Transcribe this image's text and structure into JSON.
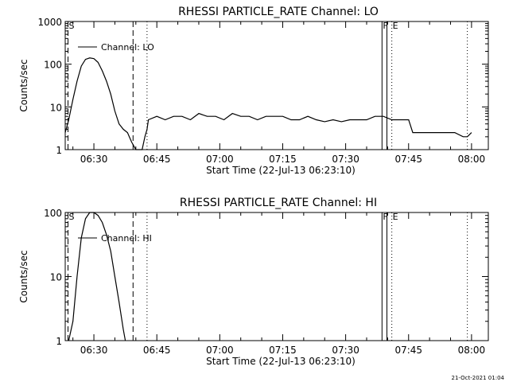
{
  "footer": {
    "timestamp": "21-Oct-2021 01:04"
  },
  "chart_data": [
    {
      "type": "line",
      "title": "RHESSI PARTICLE_RATE Channel: LO",
      "xlabel": "Start Time (22-Jul-13 06:23:10)",
      "ylabel": "Counts/sec",
      "yscale": "log",
      "ylim": [
        1,
        1000
      ],
      "xlim": [
        "06:23:10",
        "08:04:00"
      ],
      "x_ticks": [
        "06:30",
        "06:45",
        "07:00",
        "07:15",
        "07:30",
        "07:45",
        "08:00"
      ],
      "y_ticks": [
        "1",
        "10",
        "100",
        "1000"
      ],
      "legend": {
        "label": "Channel: LO",
        "placement": "top-left"
      },
      "markers": [
        {
          "label": "S",
          "time": "06:23:50",
          "style": "dashed"
        },
        {
          "label": "",
          "time": "06:39:20",
          "style": "dashed"
        },
        {
          "label": "",
          "time": "06:42:40",
          "style": "dotted"
        },
        {
          "label": "F",
          "time": "07:38:40",
          "style": "solid"
        },
        {
          "label": "",
          "time": "07:39:50",
          "style": "solid"
        },
        {
          "label": "E",
          "time": "07:41:00",
          "style": "dotted"
        },
        {
          "label": "",
          "time": "07:59:00",
          "style": "dotted"
        }
      ],
      "series": [
        {
          "name": "Channel: LO",
          "x": [
            "06:23:10",
            "06:24:00",
            "06:25:00",
            "06:26:00",
            "06:27:00",
            "06:28:00",
            "06:29:00",
            "06:30:00",
            "06:31:00",
            "06:32:00",
            "06:33:00",
            "06:34:00",
            "06:35:00",
            "06:36:00",
            "06:37:00",
            "06:38:00",
            "06:39:00",
            "06:40:00",
            "06:40:40",
            "06:41:30",
            "06:42:10",
            "06:42:40",
            "06:43:00",
            "06:45:00",
            "06:47:00",
            "06:49:00",
            "06:51:00",
            "06:53:00",
            "06:55:00",
            "06:57:00",
            "06:59:00",
            "07:01:00",
            "07:03:00",
            "07:05:00",
            "07:07:00",
            "07:09:00",
            "07:11:00",
            "07:13:00",
            "07:15:00",
            "07:17:00",
            "07:19:00",
            "07:21:00",
            "07:23:00",
            "07:25:00",
            "07:27:00",
            "07:29:00",
            "07:31:00",
            "07:33:00",
            "07:35:00",
            "07:37:00",
            "07:39:00",
            "07:41:00",
            "07:43:00",
            "07:44:00",
            "07:45:00",
            "07:46:00",
            "07:48:00",
            "07:50:00",
            "07:52:00",
            "07:54:00",
            "07:56:00",
            "07:58:00",
            "07:59:00",
            "08:00:00"
          ],
          "y": [
            2.5,
            5,
            15,
            40,
            90,
            130,
            140,
            135,
            110,
            70,
            40,
            20,
            8,
            4,
            3,
            2.5,
            1.5,
            1,
            1,
            1,
            2,
            3,
            5,
            6,
            5,
            6,
            6,
            5,
            7,
            6,
            6,
            5,
            7,
            6,
            6,
            5,
            6,
            6,
            6,
            5,
            5,
            6,
            5,
            4.5,
            5,
            4.5,
            5,
            5,
            5,
            6,
            6,
            5,
            5,
            5,
            5,
            2.5,
            2.5,
            2.5,
            2.5,
            2.5,
            2.5,
            2,
            2,
            2.5
          ]
        }
      ]
    },
    {
      "type": "line",
      "title": "RHESSI PARTICLE_RATE Channel: HI",
      "xlabel": "Start Time (22-Jul-13 06:23:10)",
      "ylabel": "Counts/sec",
      "yscale": "log",
      "ylim": [
        1,
        100
      ],
      "xlim": [
        "06:23:10",
        "08:04:00"
      ],
      "x_ticks": [
        "06:30",
        "06:45",
        "07:00",
        "07:15",
        "07:30",
        "07:45",
        "08:00"
      ],
      "y_ticks": [
        "1",
        "10",
        "100"
      ],
      "legend": {
        "label": "Channel: HI",
        "placement": "top-left"
      },
      "markers": [
        {
          "label": "S",
          "time": "06:23:50",
          "style": "dashed"
        },
        {
          "label": "",
          "time": "06:39:20",
          "style": "dashed"
        },
        {
          "label": "",
          "time": "06:42:40",
          "style": "dotted"
        },
        {
          "label": "F",
          "time": "07:38:40",
          "style": "solid"
        },
        {
          "label": "",
          "time": "07:39:50",
          "style": "solid"
        },
        {
          "label": "E",
          "time": "07:41:00",
          "style": "dotted"
        },
        {
          "label": "",
          "time": "07:59:00",
          "style": "dotted"
        }
      ],
      "series": [
        {
          "name": "Channel: HI",
          "x": [
            "06:24:00",
            "06:25:00",
            "06:26:00",
            "06:27:00",
            "06:28:00",
            "06:29:00",
            "06:30:00",
            "06:31:00",
            "06:32:00",
            "06:33:00",
            "06:34:00",
            "06:35:00",
            "06:36:00",
            "06:37:00",
            "06:37:30"
          ],
          "y": [
            1,
            2,
            10,
            40,
            80,
            100,
            100,
            90,
            70,
            45,
            25,
            10,
            4,
            1.5,
            1
          ]
        }
      ]
    }
  ]
}
